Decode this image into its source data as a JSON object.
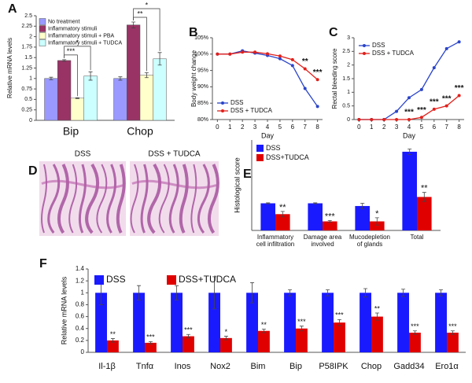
{
  "chart_data": [
    {
      "type": "bar",
      "panel": "A",
      "y_label": "Relative mRNA levels",
      "categories": [
        "Bip",
        "Chop"
      ],
      "ylim": [
        0,
        2.5
      ],
      "yticks": [
        0,
        0.25,
        0.5,
        0.75,
        1,
        1.25,
        1.5,
        1.75,
        2,
        2.25,
        2.5
      ],
      "legend": "top-left",
      "series": [
        {
          "name": "No treatment",
          "color": "#9999ff",
          "values": [
            1.0,
            1.0
          ],
          "errors": [
            0.03,
            0.04
          ]
        },
        {
          "name": "Inflammatory stimuli",
          "color": "#993366",
          "values": [
            1.43,
            2.28
          ],
          "errors": [
            0.02,
            0.07
          ]
        },
        {
          "name": "Inflammatory stimuli + PBA",
          "color": "#ffffcc",
          "values": [
            0.53,
            1.08
          ],
          "errors": [
            0.01,
            0.06
          ]
        },
        {
          "name": "Inflammatory stimuli + TUDCA",
          "color": "#ccffff",
          "values": [
            1.06,
            1.47
          ],
          "errors": [
            0.1,
            0.15
          ]
        }
      ],
      "annotations": [
        {
          "text": "***",
          "category": 0,
          "series": [
            1,
            2
          ]
        },
        {
          "text": "*",
          "category": 0,
          "series": [
            1,
            3
          ]
        },
        {
          "text": "**",
          "category": 1,
          "series": [
            1,
            2
          ]
        },
        {
          "text": "*",
          "category": 1,
          "series": [
            1,
            3
          ]
        }
      ]
    },
    {
      "type": "line",
      "panel": "B",
      "y_label": "Body weight change",
      "x_label": "Day",
      "x": [
        0,
        1,
        2,
        3,
        4,
        5,
        6,
        7,
        8
      ],
      "xlim": [
        -0.4,
        8.4
      ],
      "xticks": [
        0,
        1,
        2,
        3,
        4,
        5,
        6,
        7,
        8
      ],
      "ylim": [
        80,
        105
      ],
      "yticks": [
        {
          "value": 80,
          "label": "80%"
        },
        {
          "value": 85,
          "label": "85%"
        },
        {
          "value": 90,
          "label": "90%"
        },
        {
          "value": 95,
          "label": "95%"
        },
        {
          "value": 100,
          "label": "100%"
        },
        {
          "value": 105,
          "label": "105%"
        }
      ],
      "legend": "bottom-left",
      "series": [
        {
          "name": "DSS",
          "color": "#2b45c9",
          "values": [
            100,
            100,
            101,
            100.3,
            99.6,
            98.6,
            96.5,
            89.5,
            84
          ]
        },
        {
          "name": "DSS + TUDCA",
          "color": "#e0201b",
          "values": [
            100,
            100,
            100.6,
            100.6,
            100.1,
            99.4,
            98.3,
            95.5,
            92.2
          ]
        }
      ],
      "annotations": [
        {
          "x": 7,
          "text": "**",
          "series": 1
        },
        {
          "x": 8,
          "text": "***",
          "series": 1
        }
      ]
    },
    {
      "type": "line",
      "panel": "C",
      "y_label": "Rectal bleeding score",
      "x_label": "Day",
      "x": [
        0,
        1,
        2,
        3,
        4,
        5,
        6,
        7,
        8
      ],
      "xlim": [
        -0.4,
        8.4
      ],
      "xticks": [
        0,
        1,
        2,
        3,
        4,
        5,
        6,
        7,
        8
      ],
      "ylim": [
        0,
        3
      ],
      "yticks": [
        0,
        0.5,
        1,
        1.5,
        2,
        2.5,
        3
      ],
      "legend": "top-left",
      "series": [
        {
          "name": "DSS",
          "color": "#2b45c9",
          "values": [
            0,
            0,
            0,
            0.3,
            0.8,
            1.1,
            1.9,
            2.6,
            2.85
          ]
        },
        {
          "name": "DSS + TUDCA",
          "color": "#e0201b",
          "values": [
            0,
            0,
            0,
            0,
            0,
            0.08,
            0.38,
            0.5,
            0.88
          ]
        }
      ],
      "annotations": [
        {
          "x": 4,
          "text": "***",
          "series": 1
        },
        {
          "x": 5,
          "text": "***",
          "series": 1
        },
        {
          "x": 6,
          "text": "***",
          "series": 1
        },
        {
          "x": 7,
          "text": "***",
          "series": 1
        },
        {
          "x": 8,
          "text": "***",
          "series": 1
        }
      ]
    },
    {
      "type": "image",
      "panel": "D",
      "captions": [
        "DSS",
        "DSS + TUDCA"
      ]
    },
    {
      "type": "bar",
      "panel": "E",
      "y_label": "Histological score",
      "categories": [
        "Inflammatory cell infiltration",
        "Damage area involved",
        "Mucodepletion of glands",
        "Total"
      ],
      "ylim": [
        0,
        10
      ],
      "legend": "top-left",
      "series": [
        {
          "name": "DSS",
          "color": "#1a1aff",
          "values": [
            3,
            3,
            2.7,
            8.7
          ],
          "errors": [
            0.05,
            0.05,
            0.3,
            0.3
          ]
        },
        {
          "name": "DSS+TUDCA",
          "color": "#e00000",
          "values": [
            1.8,
            1.0,
            1.0,
            3.7
          ],
          "errors": [
            0.3,
            0.1,
            0.4,
            0.5
          ],
          "significance": [
            "**",
            "***",
            "*",
            "**"
          ]
        }
      ]
    },
    {
      "type": "bar",
      "panel": "F",
      "y_label": "Relative mRNA levels",
      "categories": [
        "Il-1β",
        "Tnfα",
        "Inos",
        "Nox2",
        "Bim",
        "Bip",
        "P58IPK",
        "Chop",
        "Gadd34",
        "Ero1α"
      ],
      "ylim": [
        0,
        1.4
      ],
      "yticks": [
        0,
        0.2,
        0.4,
        0.6,
        0.8,
        1,
        1.2,
        1.4
      ],
      "legend": "top",
      "series": [
        {
          "name": "DSS",
          "color": "#1a1aff",
          "values": [
            1,
            1,
            1,
            1,
            1,
            1,
            1,
            1,
            1,
            1
          ],
          "errors": [
            0.2,
            0.12,
            0.12,
            0.27,
            0.17,
            0.05,
            0.05,
            0.07,
            0.06,
            0.05
          ]
        },
        {
          "name": "DSS+TUDCA",
          "color": "#e00000",
          "values": [
            0.2,
            0.16,
            0.27,
            0.24,
            0.36,
            0.4,
            0.5,
            0.6,
            0.33,
            0.33
          ],
          "errors": [
            0.03,
            0.02,
            0.03,
            0.03,
            0.03,
            0.04,
            0.05,
            0.06,
            0.03,
            0.03
          ],
          "significance": [
            "**",
            "***",
            "***",
            "*",
            "**",
            "***",
            "***",
            "**",
            "***",
            "***"
          ]
        }
      ]
    }
  ]
}
